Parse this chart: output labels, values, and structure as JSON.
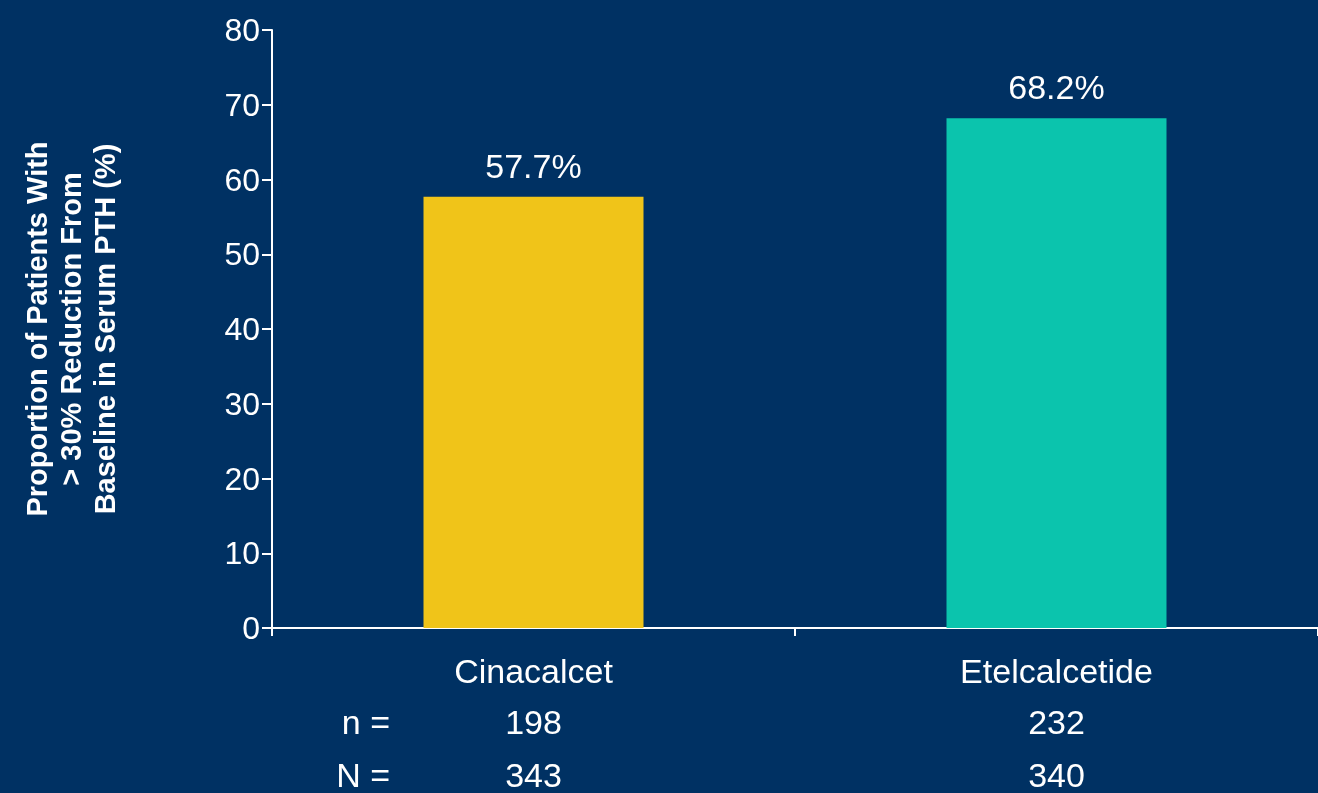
{
  "chart_data": {
    "type": "bar",
    "ylabel": "Proportion of Patients With\n> 30% Reduction From\nBaseline in Serum PTH (%)",
    "categories": [
      "Cinacalcet",
      "Etelcalcetide"
    ],
    "values": [
      57.7,
      68.2
    ],
    "colors": [
      "#f0c419",
      "#0bc4ad"
    ],
    "value_labels": [
      "57.7%",
      "68.2%"
    ],
    "ylim": [
      0,
      80
    ],
    "yticks": [
      0,
      10,
      20,
      30,
      40,
      50,
      60,
      70,
      80
    ],
    "grid": false,
    "annotations": [
      "n =",
      "198",
      "232",
      "N =",
      "343",
      "340"
    ]
  }
}
